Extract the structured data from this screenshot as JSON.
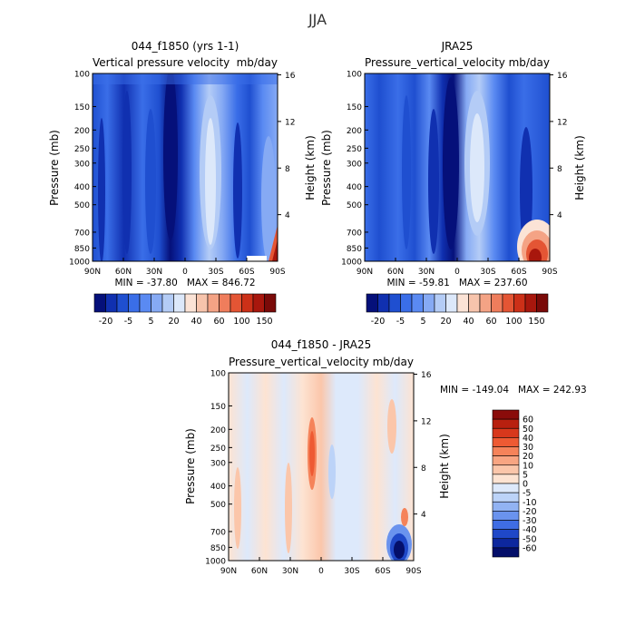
{
  "figure_title": "JJA",
  "chart_data": [
    {
      "type": "heatmap",
      "title": "044_f1850 (yrs 1-1)",
      "subtitle_left": "Vertical pressure velocity",
      "subtitle_right": "mb/day",
      "xlabel": "",
      "ylabel": "Pressure (mb)",
      "ylabel_right": "Height (km)",
      "x_ticks": [
        "90N",
        "60N",
        "30N",
        "0",
        "30S",
        "60S",
        "90S"
      ],
      "y_ticks": [
        "100",
        "150",
        "200",
        "250",
        "300",
        "400",
        "500",
        "700",
        "850",
        "1000"
      ],
      "y_ticks_right": [
        "16",
        "12",
        "8",
        "4"
      ],
      "min_max_text": "MIN = -37.80   MAX = 846.72",
      "colorbar_labels": [
        "-20",
        "-5",
        "5",
        "20",
        "40",
        "60",
        "100",
        "150"
      ],
      "colorbar_colors": [
        "#05107a",
        "#1030b0",
        "#1f4fd0",
        "#3a6ee8",
        "#5a8af2",
        "#86aaf4",
        "#b4ccf6",
        "#dce8fa",
        "#fbe3d6",
        "#f7c4ac",
        "#f4a385",
        "#ef7d5c",
        "#e45534",
        "#cc3018",
        "#a8170d",
        "#7a0a08"
      ],
      "ylim": [
        100,
        1000
      ],
      "xlim": [
        "90N",
        "90S"
      ]
    },
    {
      "type": "heatmap",
      "title": "JRA25",
      "subtitle_left": "Pressure_vertical_velocity",
      "subtitle_right": "mb/day",
      "xlabel": "",
      "ylabel": "Pressure (mb)",
      "ylabel_right": "Height (km)",
      "x_ticks": [
        "90N",
        "60N",
        "30N",
        "0",
        "30S",
        "60S",
        "90S"
      ],
      "y_ticks": [
        "100",
        "150",
        "200",
        "250",
        "300",
        "400",
        "500",
        "700",
        "850",
        "1000"
      ],
      "y_ticks_right": [
        "16",
        "12",
        "8",
        "4"
      ],
      "min_max_text": "MIN = -59.81   MAX = 237.60",
      "colorbar_labels": [
        "-20",
        "-5",
        "5",
        "20",
        "40",
        "60",
        "100",
        "150"
      ],
      "colorbar_colors": [
        "#05107a",
        "#1030b0",
        "#1f4fd0",
        "#3a6ee8",
        "#5a8af2",
        "#86aaf4",
        "#b4ccf6",
        "#dce8fa",
        "#fbe3d6",
        "#f7c4ac",
        "#f4a385",
        "#ef7d5c",
        "#e45534",
        "#cc3018",
        "#a8170d",
        "#7a0a08"
      ],
      "ylim": [
        100,
        1000
      ],
      "xlim": [
        "90N",
        "90S"
      ]
    },
    {
      "type": "heatmap",
      "title": "044_f1850 - JRA25",
      "subtitle_left": "Pressure_vertical_velocity",
      "subtitle_right": "mb/day",
      "xlabel": "",
      "ylabel": "Pressure (mb)",
      "ylabel_right": "Height (km)",
      "x_ticks": [
        "90N",
        "60N",
        "30N",
        "0",
        "30S",
        "60S",
        "90S"
      ],
      "y_ticks": [
        "100",
        "150",
        "200",
        "250",
        "300",
        "400",
        "500",
        "700",
        "850",
        "1000"
      ],
      "y_ticks_right": [
        "16",
        "12",
        "8",
        "4"
      ],
      "min_max_text": "MIN = -149.04   MAX = 242.93",
      "colorbar_labels": [
        "60",
        "50",
        "40",
        "30",
        "20",
        "10",
        "5",
        "0",
        "-5",
        "-10",
        "-20",
        "-30",
        "-40",
        "-50",
        "-60"
      ],
      "colorbar_colors": [
        "#8a0c0a",
        "#b8200f",
        "#d8381c",
        "#ee5a33",
        "#f5835a",
        "#f8a582",
        "#fbc6aa",
        "#fde3d2",
        "#dde9fb",
        "#bcd3f8",
        "#92b3f3",
        "#6a93ee",
        "#3f6de4",
        "#1f48c8",
        "#0d279e",
        "#040f6a"
      ],
      "ylim": [
        100,
        1000
      ],
      "xlim": [
        "90N",
        "90S"
      ]
    }
  ]
}
